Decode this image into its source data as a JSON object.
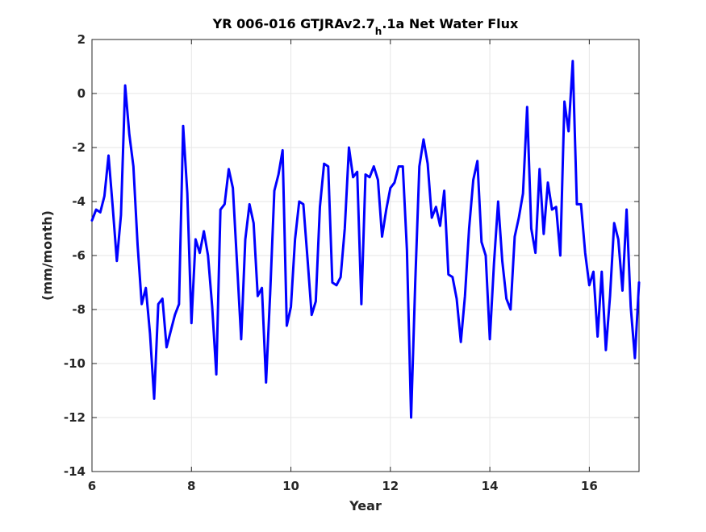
{
  "chart_data": {
    "type": "line",
    "title": {
      "main": "YR 006-016 GTJRAv2.7",
      "sub": "h",
      "tail": ".1a Net Water Flux"
    },
    "xlabel": "Year",
    "ylabel": "(mm/month)",
    "xlim": [
      6,
      17
    ],
    "ylim": [
      -14,
      2
    ],
    "xticks": [
      6,
      8,
      10,
      12,
      14,
      16
    ],
    "xtick_labels": [
      "6",
      "8",
      "10",
      "12",
      "14",
      "16"
    ],
    "yticks": [
      -14,
      -12,
      -10,
      -8,
      -6,
      -4,
      -2,
      0,
      2
    ],
    "ytick_labels": [
      "-14",
      "-12",
      "-10",
      "-8",
      "-6",
      "-4",
      "-2",
      "0",
      "2"
    ],
    "grid": true,
    "series": [
      {
        "color": "#0000ff",
        "x": [
          6.0,
          6.083,
          6.167,
          6.25,
          6.333,
          6.417,
          6.5,
          6.583,
          6.667,
          6.75,
          6.833,
          6.917,
          7.0,
          7.083,
          7.167,
          7.25,
          7.333,
          7.417,
          7.5,
          7.583,
          7.667,
          7.75,
          7.833,
          7.917,
          8.0,
          8.083,
          8.167,
          8.25,
          8.333,
          8.417,
          8.5,
          8.583,
          8.667,
          8.75,
          8.833,
          8.917,
          9.0,
          9.083,
          9.167,
          9.25,
          9.333,
          9.417,
          9.5,
          9.583,
          9.667,
          9.75,
          9.833,
          9.917,
          10.0,
          10.083,
          10.167,
          10.25,
          10.333,
          10.417,
          10.5,
          10.583,
          10.667,
          10.75,
          10.833,
          10.917,
          11.0,
          11.083,
          11.167,
          11.25,
          11.333,
          11.417,
          11.5,
          11.583,
          11.667,
          11.75,
          11.833,
          11.917,
          12.0,
          12.083,
          12.167,
          12.25,
          12.333,
          12.417,
          12.5,
          12.583,
          12.667,
          12.75,
          12.833,
          12.917,
          13.0,
          13.083,
          13.167,
          13.25,
          13.333,
          13.417,
          13.5,
          13.583,
          13.667,
          13.75,
          13.833,
          13.917,
          14.0,
          14.083,
          14.167,
          14.25,
          14.333,
          14.417,
          14.5,
          14.583,
          14.667,
          14.75,
          14.833,
          14.917,
          15.0,
          15.083,
          15.167,
          15.25,
          15.333,
          15.417,
          15.5,
          15.583,
          15.667,
          15.75,
          15.833,
          15.917,
          16.0,
          16.083,
          16.167,
          16.25,
          16.333,
          16.417,
          16.5,
          16.583,
          16.667,
          16.75,
          16.833,
          16.917,
          17.0
        ],
        "y": [
          -4.7,
          -4.3,
          -4.4,
          -3.8,
          -2.3,
          -4.2,
          -6.2,
          -4.5,
          0.3,
          -1.5,
          -2.7,
          -5.6,
          -7.8,
          -7.2,
          -8.9,
          -11.3,
          -7.8,
          -7.6,
          -9.4,
          -8.8,
          -8.2,
          -7.8,
          -1.2,
          -3.7,
          -8.5,
          -5.4,
          -5.9,
          -5.1,
          -6.0,
          -7.9,
          -10.4,
          -4.3,
          -4.1,
          -2.8,
          -3.5,
          -6.3,
          -9.1,
          -5.4,
          -4.1,
          -4.8,
          -7.5,
          -7.2,
          -10.7,
          -7.4,
          -3.6,
          -3.0,
          -2.1,
          -8.6,
          -7.9,
          -5.4,
          -4.0,
          -4.1,
          -6.1,
          -8.2,
          -7.7,
          -4.2,
          -2.6,
          -2.7,
          -7.0,
          -7.1,
          -6.8,
          -5.0,
          -2.0,
          -3.1,
          -2.9,
          -7.8,
          -3.0,
          -3.1,
          -2.7,
          -3.2,
          -5.3,
          -4.3,
          -3.5,
          -3.3,
          -2.7,
          -2.7,
          -5.8,
          -12.0,
          -7.0,
          -2.7,
          -1.7,
          -2.6,
          -4.6,
          -4.2,
          -4.9,
          -3.6,
          -6.7,
          -6.8,
          -7.6,
          -9.2,
          -7.5,
          -5.0,
          -3.2,
          -2.5,
          -5.5,
          -6.0,
          -9.1,
          -6.3,
          -4.0,
          -6.2,
          -7.6,
          -8.0,
          -5.3,
          -4.6,
          -3.7,
          -0.5,
          -5.0,
          -5.9,
          -2.8,
          -5.2,
          -3.3,
          -4.3,
          -4.2,
          -6.0,
          -0.3,
          -1.4,
          1.2,
          -4.1,
          -4.1,
          -5.9,
          -7.1,
          -6.6,
          -9.0,
          -6.6,
          -9.5,
          -7.5,
          -4.8,
          -5.4,
          -7.3,
          -4.3,
          -7.9,
          -9.8,
          -7.0
        ]
      }
    ]
  }
}
